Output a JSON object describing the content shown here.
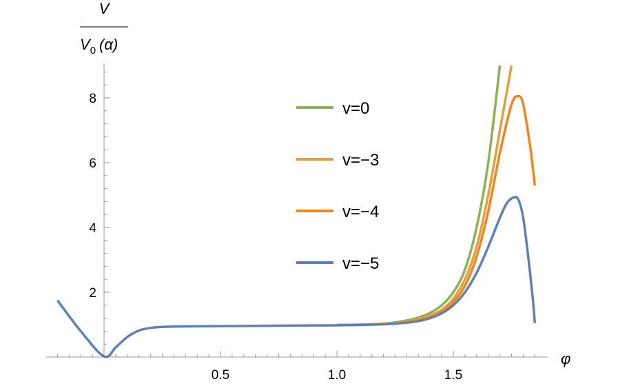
{
  "chart_data": {
    "type": "line",
    "title": "",
    "xlabel": "φ",
    "ylabel_numerator": "V",
    "ylabel_denominator": "V0 (α)",
    "ylabel_denominator_base": "V",
    "ylabel_denominator_sub": "0",
    "ylabel_denominator_arg": "(α)",
    "xlim": [
      -0.2,
      1.9
    ],
    "ylim": [
      0,
      9
    ],
    "xticks": [
      {
        "value": 0.5,
        "label": "0.5"
      },
      {
        "value": 1.0,
        "label": "1.0"
      },
      {
        "value": 1.5,
        "label": "1.5"
      }
    ],
    "yticks": [
      {
        "value": 2,
        "label": "2"
      },
      {
        "value": 4,
        "label": "4"
      },
      {
        "value": 6,
        "label": "6"
      },
      {
        "value": 8,
        "label": "8"
      }
    ],
    "grid": false,
    "legend_position": "center-right",
    "series": [
      {
        "name": "v=0",
        "color": "#8db350",
        "x": [
          1.0,
          1.05,
          1.1,
          1.15,
          1.2,
          1.25,
          1.3,
          1.35,
          1.4,
          1.45,
          1.5,
          1.55,
          1.6,
          1.65,
          1.7
        ],
        "y": [
          0.99,
          0.995,
          1.0,
          1.01,
          1.03,
          1.07,
          1.13,
          1.22,
          1.36,
          1.6,
          2.0,
          2.7,
          4.0,
          6.0,
          9.0
        ]
      },
      {
        "name": "v=−3",
        "color": "#e0a040",
        "x": [
          1.0,
          1.05,
          1.1,
          1.15,
          1.2,
          1.25,
          1.3,
          1.35,
          1.4,
          1.45,
          1.5,
          1.55,
          1.6,
          1.65,
          1.7,
          1.75
        ],
        "y": [
          0.99,
          0.995,
          1.0,
          1.01,
          1.02,
          1.05,
          1.1,
          1.17,
          1.28,
          1.46,
          1.8,
          2.4,
          3.4,
          5.0,
          7.0,
          9.0
        ]
      },
      {
        "name": "v=−4",
        "color": "#f7841b",
        "x": [
          1.0,
          1.05,
          1.1,
          1.15,
          1.2,
          1.25,
          1.3,
          1.35,
          1.4,
          1.45,
          1.5,
          1.55,
          1.6,
          1.65,
          1.7,
          1.75,
          1.78,
          1.8,
          1.83,
          1.85
        ],
        "y": [
          0.99,
          0.995,
          1.0,
          1.01,
          1.02,
          1.04,
          1.08,
          1.14,
          1.24,
          1.4,
          1.7,
          2.2,
          3.1,
          4.5,
          6.3,
          7.8,
          8.05,
          7.8,
          6.5,
          5.3
        ]
      },
      {
        "name": "v=−5",
        "color": "#5e81b5",
        "x": [
          -0.2,
          -0.1,
          0.0,
          0.05,
          0.1,
          0.15,
          0.2,
          0.25,
          0.3,
          0.4,
          0.5,
          0.6,
          0.7,
          0.8,
          0.9,
          1.0,
          1.05,
          1.1,
          1.15,
          1.2,
          1.25,
          1.3,
          1.35,
          1.4,
          1.45,
          1.5,
          1.55,
          1.6,
          1.65,
          1.7,
          1.73,
          1.76,
          1.78,
          1.8,
          1.82,
          1.84,
          1.85
        ],
        "y": [
          1.75,
          0.8,
          0.02,
          0.3,
          0.62,
          0.82,
          0.9,
          0.93,
          0.94,
          0.95,
          0.955,
          0.96,
          0.965,
          0.97,
          0.975,
          0.98,
          0.985,
          0.99,
          1.0,
          1.01,
          1.03,
          1.06,
          1.11,
          1.2,
          1.35,
          1.6,
          2.0,
          2.6,
          3.4,
          4.3,
          4.75,
          4.93,
          4.85,
          4.3,
          3.2,
          1.9,
          1.05
        ]
      }
    ]
  }
}
